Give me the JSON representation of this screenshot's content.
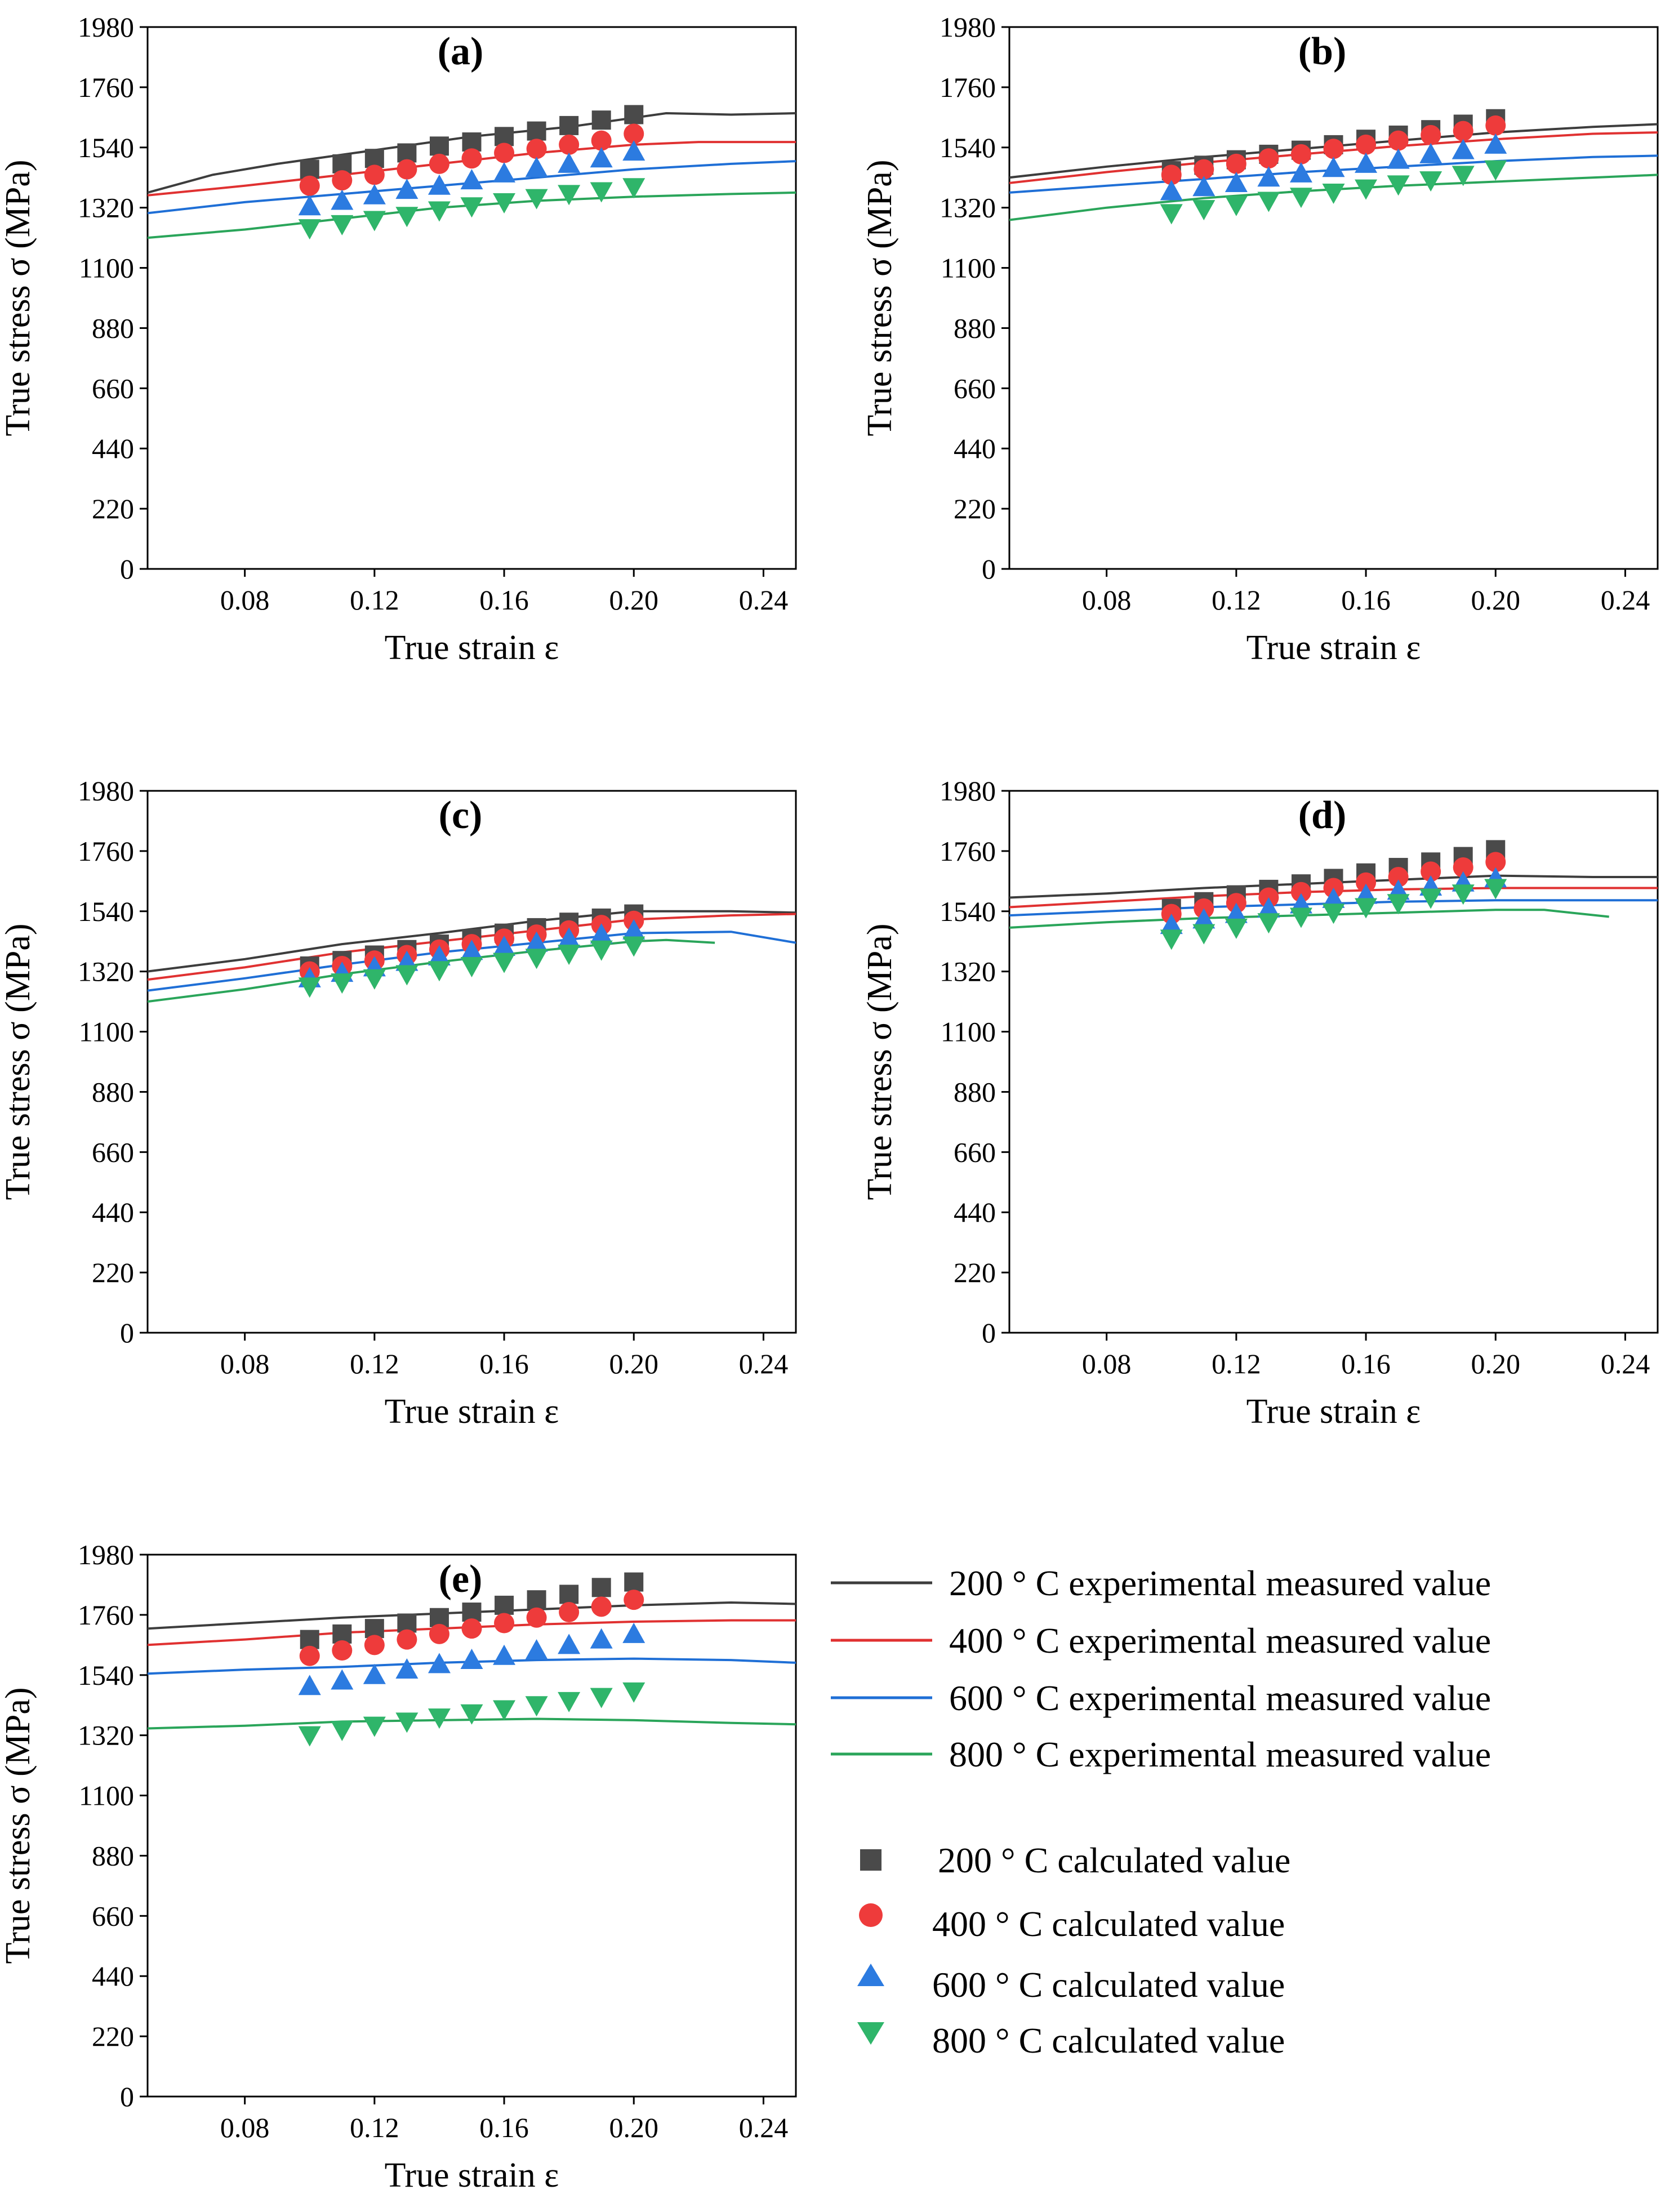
{
  "colors": {
    "c200": "#3d3d3d",
    "c400": "#e03131",
    "c600": "#1f6fd6",
    "c800": "#2aa55a",
    "m200": "#4a4a4a",
    "m400": "#ee3b3b",
    "m600": "#2c7be0",
    "m800": "#2fb56a"
  },
  "legend": {
    "lines": [
      {
        "key": "200",
        "label": "200 ° C experimental measured value"
      },
      {
        "key": "400",
        "label": "400 ° C experimental measured value"
      },
      {
        "key": "600",
        "label": "600 ° C experimental measured value"
      },
      {
        "key": "800",
        "label": "800 ° C experimental measured value"
      }
    ],
    "markers": [
      {
        "key": "200",
        "marker": "square",
        "label": "200 ° C calculated value"
      },
      {
        "key": "400",
        "marker": "circle",
        "label": "400 ° C calculated value"
      },
      {
        "key": "600",
        "marker": "triangle-up",
        "label": "600 ° C calculated value"
      },
      {
        "key": "800",
        "marker": "triangle-down",
        "label": "800 ° C calculated value"
      }
    ]
  },
  "chart_data": [
    {
      "type": "line",
      "panel": "(a)",
      "xlabel": "True strain ε",
      "ylabel": "True stress σ (MPa)",
      "xlim": [
        0.05,
        0.25
      ],
      "ylim": [
        0,
        1980
      ],
      "xticks": [
        "0.08",
        "0.12",
        "0.16",
        "0.20",
        "0.24"
      ],
      "yticks": [
        "0",
        "220",
        "440",
        "660",
        "880",
        "1100",
        "1320",
        "1540",
        "1760",
        "1980"
      ],
      "lines": {
        "200": [
          [
            0.05,
            1375
          ],
          [
            0.07,
            1440
          ],
          [
            0.09,
            1480
          ],
          [
            0.12,
            1530
          ],
          [
            0.15,
            1580
          ],
          [
            0.18,
            1615
          ],
          [
            0.21,
            1665
          ],
          [
            0.23,
            1660
          ],
          [
            0.25,
            1665
          ]
        ],
        "400": [
          [
            0.05,
            1365
          ],
          [
            0.08,
            1400
          ],
          [
            0.11,
            1440
          ],
          [
            0.14,
            1480
          ],
          [
            0.17,
            1520
          ],
          [
            0.2,
            1550
          ],
          [
            0.22,
            1560
          ],
          [
            0.25,
            1560
          ]
        ],
        "600": [
          [
            0.05,
            1300
          ],
          [
            0.08,
            1340
          ],
          [
            0.11,
            1370
          ],
          [
            0.14,
            1400
          ],
          [
            0.17,
            1430
          ],
          [
            0.2,
            1460
          ],
          [
            0.23,
            1480
          ],
          [
            0.25,
            1490
          ]
        ],
        "800": [
          [
            0.05,
            1210
          ],
          [
            0.08,
            1240
          ],
          [
            0.11,
            1280
          ],
          [
            0.14,
            1320
          ],
          [
            0.17,
            1345
          ],
          [
            0.2,
            1360
          ],
          [
            0.23,
            1370
          ],
          [
            0.25,
            1375
          ]
        ]
      },
      "calculated": {
        "x": [
          0.1,
          0.11,
          0.12,
          0.13,
          0.14,
          0.15,
          0.16,
          0.17,
          0.18,
          0.19,
          0.2
        ],
        "200": [
          1460,
          1480,
          1500,
          1520,
          1545,
          1560,
          1580,
          1600,
          1620,
          1640,
          1660
        ],
        "400": [
          1400,
          1420,
          1440,
          1460,
          1480,
          1500,
          1520,
          1535,
          1550,
          1565,
          1590
        ],
        "600": [
          1325,
          1345,
          1365,
          1385,
          1400,
          1420,
          1445,
          1465,
          1480,
          1500,
          1525
        ],
        "800": [
          1245,
          1260,
          1275,
          1290,
          1310,
          1325,
          1340,
          1355,
          1370,
          1380,
          1395
        ]
      }
    },
    {
      "type": "line",
      "panel": "(b)",
      "xlabel": "True strain ε",
      "ylabel": "True stress σ (MPa)",
      "xlim": [
        0.05,
        0.25
      ],
      "ylim": [
        0,
        1980
      ],
      "xticks": [
        "0.08",
        "0.12",
        "0.16",
        "0.20",
        "0.24"
      ],
      "yticks": [
        "0",
        "220",
        "440",
        "660",
        "880",
        "1100",
        "1320",
        "1540",
        "1760",
        "1980"
      ],
      "lines": {
        "200": [
          [
            0.05,
            1430
          ],
          [
            0.08,
            1470
          ],
          [
            0.11,
            1505
          ],
          [
            0.14,
            1535
          ],
          [
            0.17,
            1565
          ],
          [
            0.2,
            1595
          ],
          [
            0.23,
            1615
          ],
          [
            0.25,
            1625
          ]
        ],
        "400": [
          [
            0.05,
            1410
          ],
          [
            0.08,
            1450
          ],
          [
            0.11,
            1485
          ],
          [
            0.14,
            1515
          ],
          [
            0.17,
            1545
          ],
          [
            0.2,
            1570
          ],
          [
            0.23,
            1590
          ],
          [
            0.25,
            1595
          ]
        ],
        "600": [
          [
            0.05,
            1375
          ],
          [
            0.08,
            1400
          ],
          [
            0.11,
            1425
          ],
          [
            0.14,
            1450
          ],
          [
            0.17,
            1470
          ],
          [
            0.2,
            1490
          ],
          [
            0.23,
            1505
          ],
          [
            0.25,
            1510
          ]
        ],
        "800": [
          [
            0.05,
            1275
          ],
          [
            0.08,
            1320
          ],
          [
            0.11,
            1355
          ],
          [
            0.14,
            1380
          ],
          [
            0.17,
            1400
          ],
          [
            0.2,
            1415
          ],
          [
            0.23,
            1430
          ],
          [
            0.25,
            1440
          ]
        ]
      },
      "calculated": {
        "x": [
          0.1,
          0.11,
          0.12,
          0.13,
          0.14,
          0.15,
          0.16,
          0.17,
          0.18,
          0.19,
          0.2
        ],
        "200": [
          1455,
          1475,
          1495,
          1515,
          1530,
          1550,
          1570,
          1585,
          1605,
          1625,
          1645
        ],
        "400": [
          1440,
          1460,
          1480,
          1500,
          1515,
          1535,
          1550,
          1565,
          1585,
          1600,
          1620
        ],
        "600": [
          1380,
          1395,
          1410,
          1430,
          1445,
          1465,
          1480,
          1495,
          1515,
          1530,
          1550
        ],
        "800": [
          1300,
          1315,
          1330,
          1345,
          1360,
          1375,
          1390,
          1405,
          1420,
          1440,
          1460
        ]
      }
    },
    {
      "type": "line",
      "panel": "(c)",
      "xlabel": "True strain ε",
      "ylabel": "True stress σ (MPa)",
      "xlim": [
        0.05,
        0.25
      ],
      "ylim": [
        0,
        1980
      ],
      "xticks": [
        "0.08",
        "0.12",
        "0.16",
        "0.20",
        "0.24"
      ],
      "yticks": [
        "0",
        "220",
        "440",
        "660",
        "880",
        "1100",
        "1320",
        "1540",
        "1760",
        "1980"
      ],
      "lines": {
        "200": [
          [
            0.05,
            1320
          ],
          [
            0.08,
            1365
          ],
          [
            0.11,
            1420
          ],
          [
            0.14,
            1460
          ],
          [
            0.17,
            1505
          ],
          [
            0.2,
            1540
          ],
          [
            0.23,
            1540
          ],
          [
            0.25,
            1535
          ]
        ],
        "400": [
          [
            0.05,
            1290
          ],
          [
            0.08,
            1335
          ],
          [
            0.11,
            1390
          ],
          [
            0.14,
            1430
          ],
          [
            0.17,
            1470
          ],
          [
            0.2,
            1510
          ],
          [
            0.23,
            1525
          ],
          [
            0.25,
            1530
          ]
        ],
        "600": [
          [
            0.05,
            1250
          ],
          [
            0.08,
            1295
          ],
          [
            0.11,
            1345
          ],
          [
            0.14,
            1390
          ],
          [
            0.17,
            1425
          ],
          [
            0.2,
            1460
          ],
          [
            0.23,
            1465
          ],
          [
            0.25,
            1425
          ]
        ],
        "800": [
          [
            0.05,
            1210
          ],
          [
            0.08,
            1255
          ],
          [
            0.11,
            1310
          ],
          [
            0.14,
            1355
          ],
          [
            0.17,
            1395
          ],
          [
            0.2,
            1430
          ],
          [
            0.21,
            1435
          ],
          [
            0.225,
            1425
          ]
        ]
      },
      "calculated": {
        "x": [
          0.1,
          0.11,
          0.12,
          0.13,
          0.14,
          0.15,
          0.16,
          0.17,
          0.18,
          0.19,
          0.2
        ],
        "200": [
          1340,
          1360,
          1380,
          1400,
          1420,
          1440,
          1460,
          1480,
          1500,
          1515,
          1530
        ],
        "400": [
          1320,
          1340,
          1360,
          1380,
          1400,
          1420,
          1440,
          1455,
          1470,
          1490,
          1505
        ],
        "600": [
          1295,
          1315,
          1335,
          1355,
          1375,
          1395,
          1410,
          1425,
          1440,
          1455,
          1470
        ],
        "800": [
          1265,
          1280,
          1295,
          1310,
          1325,
          1340,
          1355,
          1370,
          1385,
          1400,
          1415
        ]
      }
    },
    {
      "type": "line",
      "panel": "(d)",
      "xlabel": "True strain ε",
      "ylabel": "True stress σ (MPa)",
      "xlim": [
        0.05,
        0.25
      ],
      "ylim": [
        0,
        1980
      ],
      "xticks": [
        "0.08",
        "0.12",
        "0.16",
        "0.20",
        "0.24"
      ],
      "yticks": [
        "0",
        "220",
        "440",
        "660",
        "880",
        "1100",
        "1320",
        "1540",
        "1760",
        "1980"
      ],
      "lines": {
        "200": [
          [
            0.05,
            1590
          ],
          [
            0.08,
            1605
          ],
          [
            0.11,
            1625
          ],
          [
            0.14,
            1640
          ],
          [
            0.17,
            1655
          ],
          [
            0.2,
            1670
          ],
          [
            0.23,
            1665
          ],
          [
            0.25,
            1665
          ]
        ],
        "400": [
          [
            0.05,
            1555
          ],
          [
            0.08,
            1575
          ],
          [
            0.11,
            1595
          ],
          [
            0.14,
            1610
          ],
          [
            0.17,
            1620
          ],
          [
            0.2,
            1625
          ],
          [
            0.23,
            1625
          ],
          [
            0.25,
            1625
          ]
        ],
        "600": [
          [
            0.05,
            1525
          ],
          [
            0.08,
            1540
          ],
          [
            0.11,
            1555
          ],
          [
            0.14,
            1565
          ],
          [
            0.17,
            1575
          ],
          [
            0.2,
            1580
          ],
          [
            0.23,
            1580
          ],
          [
            0.25,
            1580
          ]
        ],
        "800": [
          [
            0.05,
            1480
          ],
          [
            0.08,
            1500
          ],
          [
            0.11,
            1515
          ],
          [
            0.14,
            1525
          ],
          [
            0.17,
            1535
          ],
          [
            0.2,
            1545
          ],
          [
            0.215,
            1545
          ],
          [
            0.235,
            1520
          ]
        ]
      },
      "calculated": {
        "x": [
          0.1,
          0.11,
          0.12,
          0.13,
          0.14,
          0.15,
          0.16,
          0.17,
          0.18,
          0.19,
          0.2
        ],
        "200": [
          1550,
          1575,
          1600,
          1620,
          1640,
          1660,
          1680,
          1700,
          1720,
          1740,
          1765
        ],
        "400": [
          1530,
          1550,
          1570,
          1590,
          1610,
          1625,
          1645,
          1665,
          1685,
          1700,
          1720
        ],
        "600": [
          1490,
          1510,
          1530,
          1550,
          1565,
          1585,
          1600,
          1615,
          1630,
          1645,
          1660
        ],
        "800": [
          1440,
          1460,
          1480,
          1500,
          1520,
          1535,
          1555,
          1570,
          1590,
          1605,
          1625
        ]
      }
    },
    {
      "type": "line",
      "panel": "(e)",
      "xlabel": "True strain ε",
      "ylabel": "True stress σ (MPa)",
      "xlim": [
        0.05,
        0.25
      ],
      "ylim": [
        0,
        1980
      ],
      "xticks": [
        "0.08",
        "0.12",
        "0.16",
        "0.20",
        "0.24"
      ],
      "yticks": [
        "0",
        "220",
        "440",
        "660",
        "880",
        "1100",
        "1320",
        "1540",
        "1760",
        "1980"
      ],
      "lines": {
        "200": [
          [
            0.05,
            1710
          ],
          [
            0.08,
            1730
          ],
          [
            0.11,
            1750
          ],
          [
            0.14,
            1765
          ],
          [
            0.17,
            1780
          ],
          [
            0.2,
            1795
          ],
          [
            0.23,
            1805
          ],
          [
            0.25,
            1800
          ]
        ],
        "400": [
          [
            0.05,
            1650
          ],
          [
            0.08,
            1670
          ],
          [
            0.11,
            1695
          ],
          [
            0.14,
            1710
          ],
          [
            0.17,
            1725
          ],
          [
            0.2,
            1735
          ],
          [
            0.23,
            1740
          ],
          [
            0.25,
            1740
          ]
        ],
        "600": [
          [
            0.05,
            1545
          ],
          [
            0.08,
            1560
          ],
          [
            0.11,
            1570
          ],
          [
            0.14,
            1585
          ],
          [
            0.17,
            1595
          ],
          [
            0.2,
            1600
          ],
          [
            0.23,
            1595
          ],
          [
            0.25,
            1585
          ]
        ],
        "800": [
          [
            0.05,
            1345
          ],
          [
            0.08,
            1355
          ],
          [
            0.11,
            1370
          ],
          [
            0.14,
            1375
          ],
          [
            0.17,
            1380
          ],
          [
            0.2,
            1375
          ],
          [
            0.23,
            1365
          ],
          [
            0.25,
            1360
          ]
        ]
      },
      "calculated": {
        "x": [
          0.1,
          0.11,
          0.12,
          0.13,
          0.14,
          0.15,
          0.16,
          0.17,
          0.18,
          0.19,
          0.2
        ],
        "200": [
          1670,
          1690,
          1710,
          1730,
          1750,
          1770,
          1795,
          1815,
          1835,
          1860,
          1880
        ],
        "400": [
          1610,
          1630,
          1650,
          1670,
          1690,
          1710,
          1730,
          1750,
          1770,
          1790,
          1815
        ],
        "600": [
          1500,
          1520,
          1540,
          1560,
          1580,
          1595,
          1610,
          1630,
          1650,
          1670,
          1690
        ],
        "800": [
          1320,
          1340,
          1355,
          1370,
          1385,
          1400,
          1415,
          1430,
          1445,
          1460,
          1480
        ]
      }
    }
  ]
}
